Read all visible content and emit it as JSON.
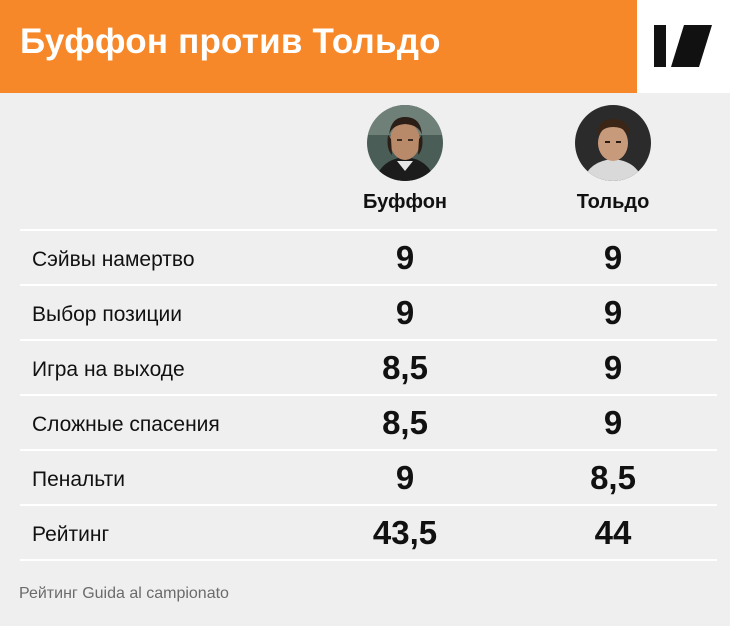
{
  "header": {
    "title": "Буффон против Тольдо",
    "logo_icon": "brand-logo-icon",
    "accent": "#f6882a"
  },
  "players": [
    {
      "name": "Буффон",
      "avatar_icon": "player-photo-buffon"
    },
    {
      "name": "Тольдо",
      "avatar_icon": "player-photo-toldo"
    }
  ],
  "rows": [
    {
      "label": "Сэйвы намертво",
      "values": [
        "9",
        "9"
      ]
    },
    {
      "label": "Выбор позиции",
      "values": [
        "9",
        "9"
      ]
    },
    {
      "label": "Игра на выходе",
      "values": [
        "8,5",
        "9"
      ]
    },
    {
      "label": "Сложные спасения",
      "values": [
        "8,5",
        "9"
      ]
    },
    {
      "label": "Пенальти",
      "values": [
        "9",
        "8,5"
      ]
    },
    {
      "label": "Рейтинг",
      "values": [
        "43,5",
        "44"
      ]
    }
  ],
  "footnote": "Рейтинг Guida al campionato"
}
